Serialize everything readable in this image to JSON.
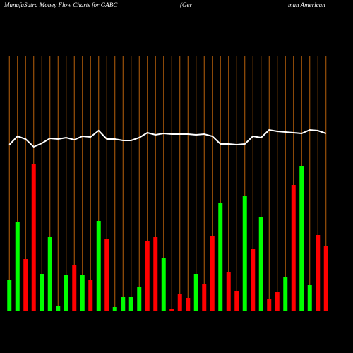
{
  "chart_data": {
    "type": "bar",
    "title": "MunafaSutra  Money Flow  Charts for GABC",
    "subtitle": "(Ger",
    "subtitle_right": "man  American",
    "categories": [
      null,
      null,
      null,
      null,
      null,
      null,
      null,
      null,
      null,
      null,
      null,
      null,
      null,
      null,
      null,
      null,
      null,
      null,
      null,
      null,
      null,
      null,
      null,
      null,
      null,
      null,
      null,
      null,
      null,
      null,
      null,
      null,
      null,
      null,
      null,
      null,
      null,
      null,
      null,
      null
    ],
    "values": [
      44,
      126,
      73,
      208,
      52,
      104,
      6,
      50,
      65,
      51,
      43,
      127,
      101,
      5,
      20,
      20,
      34,
      99,
      104,
      74,
      3,
      24,
      18,
      52,
      38,
      106,
      152,
      55,
      28,
      163,
      88,
      132,
      16,
      26,
      47,
      178,
      205,
      37,
      107,
      91
    ],
    "colors": [
      "#00ff00",
      "#00ff00",
      "#ff0000",
      "#ff0000",
      "#00ff00",
      "#00ff00",
      "#00ff00",
      "#00ff00",
      "#ff0000",
      "#00ff00",
      "#ff0000",
      "#00ff00",
      "#ff0000",
      "#00ff00",
      "#00ff00",
      "#00ff00",
      "#00ff00",
      "#ff0000",
      "#ff0000",
      "#00ff00",
      "#ff0000",
      "#ff0000",
      "#ff0000",
      "#00ff00",
      "#ff0000",
      "#ff0000",
      "#00ff00",
      "#ff0000",
      "#ff0000",
      "#00ff00",
      "#ff0000",
      "#00ff00",
      "#ff0000",
      "#ff0000",
      "#00ff00",
      "#ff0000",
      "#00ff00",
      "#00ff00",
      "#ff0000",
      "#ff0000"
    ],
    "line": {
      "color": "#ffffff",
      "values": [
        235,
        247,
        243,
        232,
        237,
        244,
        243,
        245,
        242,
        247,
        246,
        255,
        243,
        243,
        241,
        241,
        245,
        252,
        249,
        251,
        250,
        250,
        250,
        249,
        250,
        247,
        236,
        236,
        235,
        236,
        247,
        245,
        256,
        254,
        253,
        252,
        251,
        256,
        255,
        251
      ]
    },
    "grid_color": "#b8600a",
    "ylim": [
      0,
      360
    ]
  }
}
